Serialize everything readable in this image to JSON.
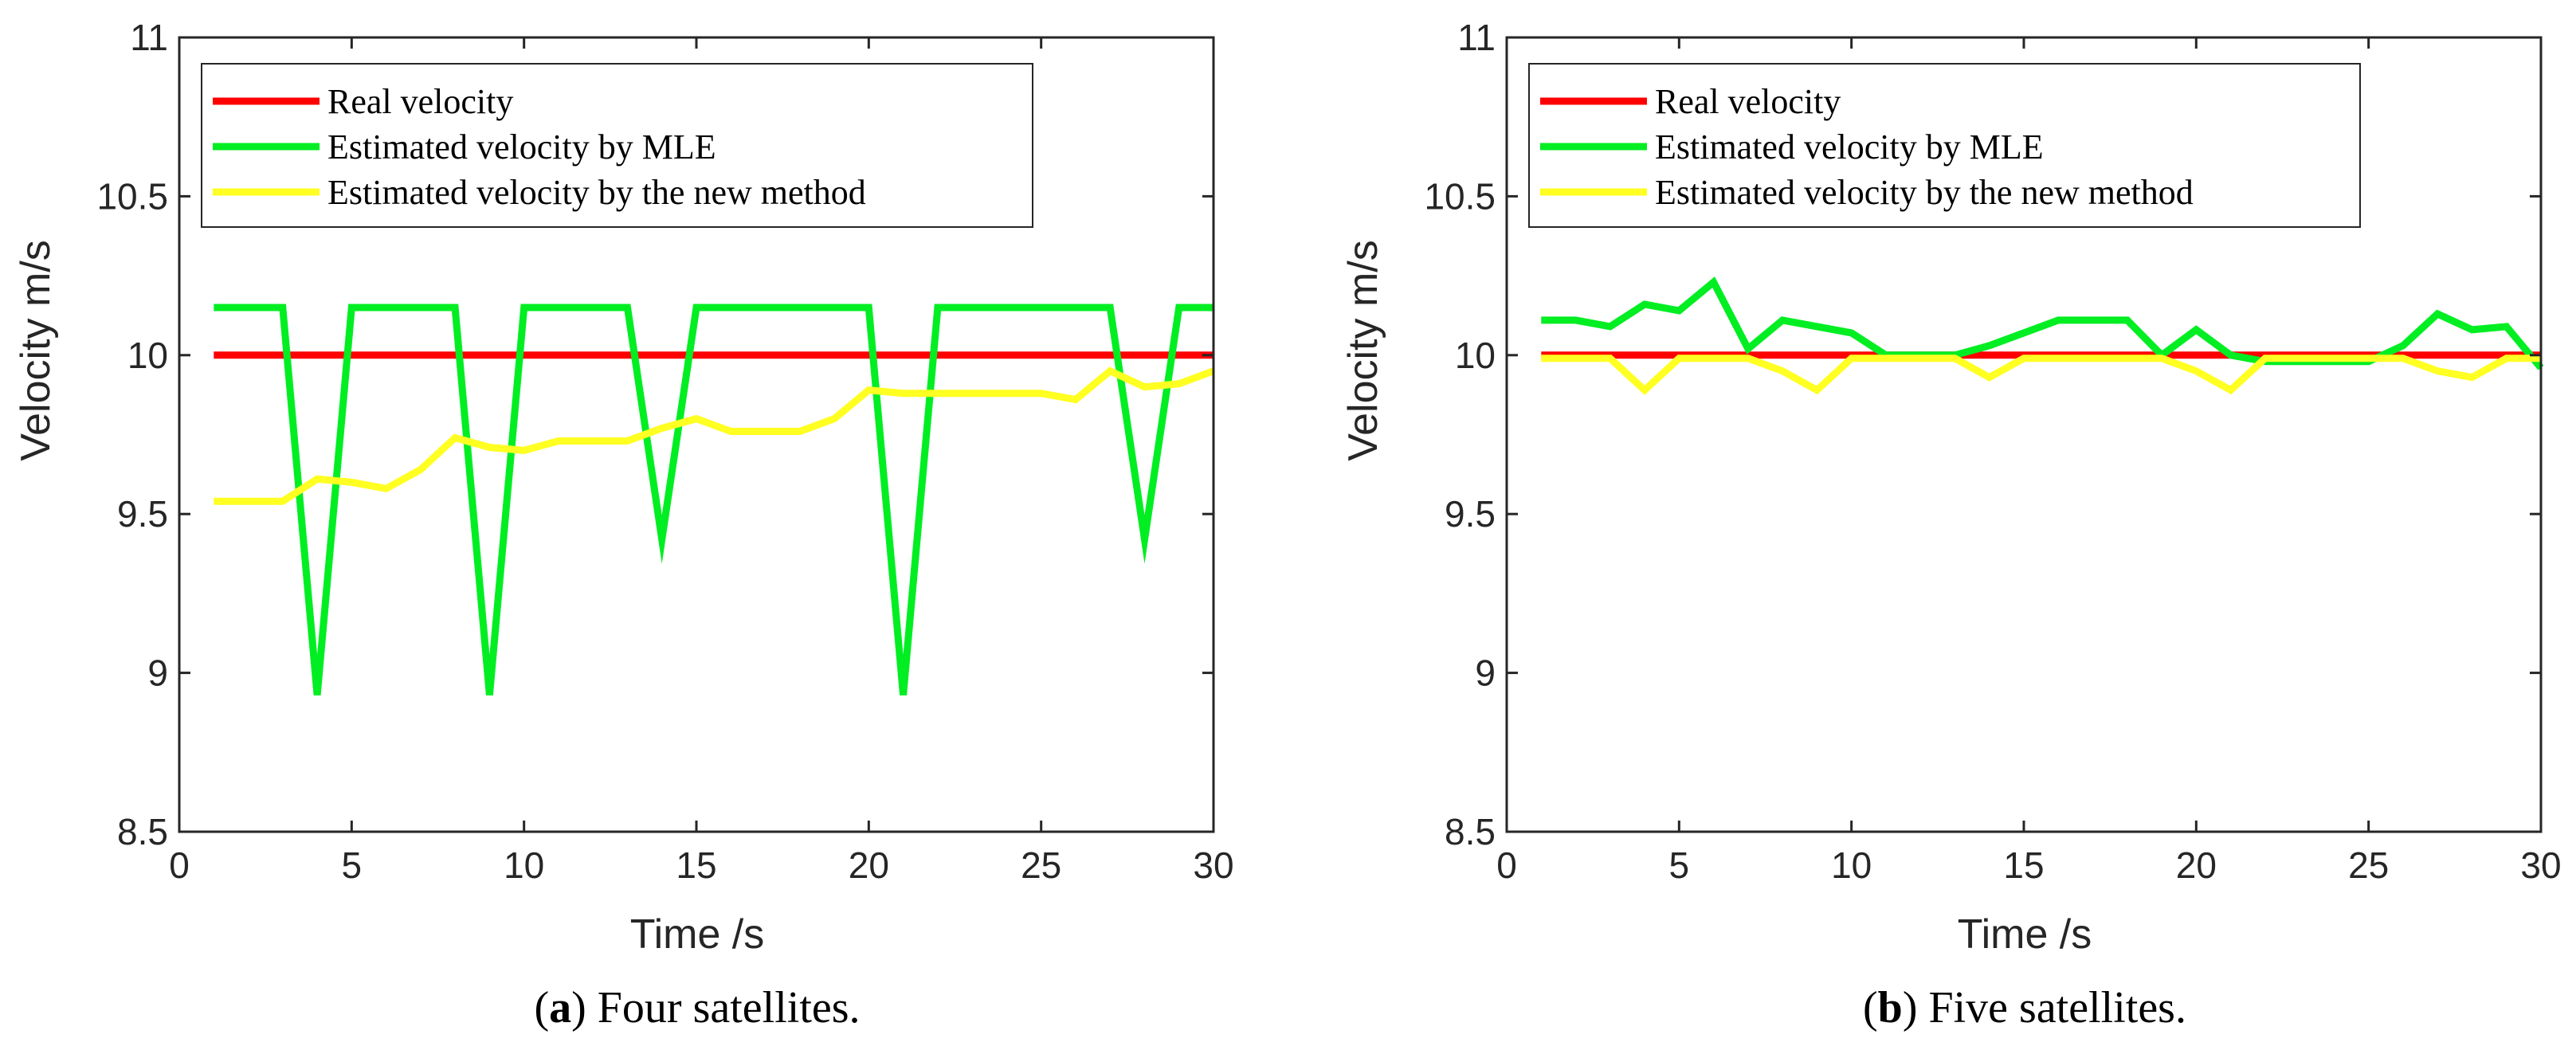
{
  "chart_data": [
    {
      "type": "line",
      "caption_letter": "a",
      "caption_text": "Four satellites.",
      "xlabel": "Time /s",
      "ylabel": "Velocity m/s",
      "xlim": [
        0,
        30
      ],
      "ylim": [
        8.5,
        11
      ],
      "xticks": [
        "0",
        "5",
        "10",
        "15",
        "20",
        "25",
        "30"
      ],
      "yticks": [
        "8.5",
        "9",
        "9.5",
        "10",
        "10.5",
        "11"
      ],
      "legend": [
        "Real velocity",
        "Estimated velocity by MLE",
        "Estimated velocity by the new method"
      ],
      "series": [
        {
          "name": "Real velocity",
          "color": "#ff0000",
          "x": [
            1,
            30
          ],
          "y": [
            10.0,
            10.0
          ]
        },
        {
          "name": "Estimated velocity by MLE",
          "color": "#00ee22",
          "x": [
            1,
            2,
            3,
            4,
            5,
            6,
            7,
            8,
            9,
            10,
            11,
            12,
            13,
            14,
            15,
            16,
            17,
            18,
            19,
            20,
            21,
            22,
            23,
            24,
            25,
            26,
            27,
            28,
            29,
            30
          ],
          "y": [
            10.15,
            10.15,
            10.15,
            8.93,
            10.15,
            10.15,
            10.15,
            10.15,
            8.93,
            10.15,
            10.15,
            10.15,
            10.15,
            9.42,
            10.15,
            10.15,
            10.15,
            10.15,
            10.15,
            10.15,
            8.93,
            10.15,
            10.15,
            10.15,
            10.15,
            10.15,
            10.15,
            9.42,
            10.15,
            10.15
          ]
        },
        {
          "name": "Estimated velocity by the new method",
          "color": "#ffff22",
          "x": [
            1,
            2,
            3,
            4,
            5,
            6,
            7,
            8,
            9,
            10,
            11,
            12,
            13,
            14,
            15,
            16,
            17,
            18,
            19,
            20,
            21,
            22,
            23,
            24,
            25,
            26,
            27,
            28,
            29,
            30
          ],
          "y": [
            9.54,
            9.54,
            9.54,
            9.61,
            9.6,
            9.58,
            9.64,
            9.74,
            9.71,
            9.7,
            9.73,
            9.73,
            9.73,
            9.77,
            9.8,
            9.76,
            9.76,
            9.76,
            9.8,
            9.89,
            9.88,
            9.88,
            9.88,
            9.88,
            9.88,
            9.86,
            9.95,
            9.9,
            9.91,
            9.95
          ]
        }
      ]
    },
    {
      "type": "line",
      "caption_letter": "b",
      "caption_text": "Five satellites.",
      "xlabel": "Time /s",
      "ylabel": "Velocity m/s",
      "xlim": [
        0,
        30
      ],
      "ylim": [
        8.5,
        11
      ],
      "xticks": [
        "0",
        "5",
        "10",
        "15",
        "20",
        "25",
        "30"
      ],
      "yticks": [
        "8.5",
        "9",
        "9.5",
        "10",
        "10.5",
        "11"
      ],
      "legend": [
        "Real velocity",
        "Estimated velocity by MLE",
        "Estimated velocity by the new method"
      ],
      "series": [
        {
          "name": "Real velocity",
          "color": "#ff0000",
          "x": [
            1,
            30
          ],
          "y": [
            10.0,
            10.0
          ]
        },
        {
          "name": "Estimated velocity by MLE",
          "color": "#00ee22",
          "x": [
            1,
            2,
            3,
            4,
            5,
            6,
            7,
            8,
            9,
            10,
            11,
            12,
            13,
            14,
            15,
            16,
            17,
            18,
            19,
            20,
            21,
            22,
            23,
            24,
            25,
            26,
            27,
            28,
            29,
            30
          ],
          "y": [
            10.11,
            10.11,
            10.09,
            10.16,
            10.14,
            10.23,
            10.02,
            10.11,
            10.09,
            10.07,
            10.0,
            10.0,
            10.0,
            10.03,
            10.07,
            10.11,
            10.11,
            10.11,
            10.0,
            10.08,
            10.0,
            9.98,
            9.98,
            9.98,
            9.98,
            10.03,
            10.13,
            10.08,
            10.09,
            9.96
          ]
        },
        {
          "name": "Estimated velocity by the new method",
          "color": "#ffff22",
          "x": [
            1,
            2,
            3,
            4,
            5,
            6,
            7,
            8,
            9,
            10,
            11,
            12,
            13,
            14,
            15,
            16,
            17,
            18,
            19,
            20,
            21,
            22,
            23,
            24,
            25,
            26,
            27,
            28,
            29,
            30
          ],
          "y": [
            9.99,
            9.99,
            9.99,
            9.89,
            9.99,
            9.99,
            9.99,
            9.95,
            9.89,
            9.99,
            9.99,
            9.99,
            9.99,
            9.93,
            9.99,
            9.99,
            9.99,
            9.99,
            9.99,
            9.95,
            9.89,
            9.99,
            9.99,
            9.99,
            9.99,
            9.99,
            9.95,
            9.93,
            9.99,
            9.99
          ]
        }
      ]
    }
  ]
}
